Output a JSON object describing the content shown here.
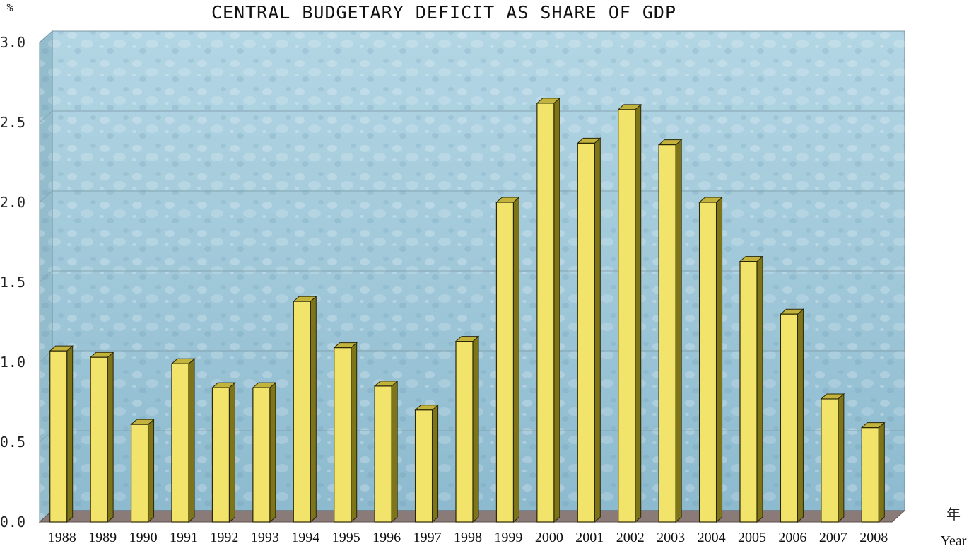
{
  "chart_data": {
    "type": "bar",
    "title": "CENTRAL BUDGETARY DEFICIT AS SHARE OF GDP",
    "ylabel": "%",
    "xlabel_cn": "年",
    "xlabel": "Year",
    "ylim": [
      0,
      3.0
    ],
    "yticks": [
      "0.0",
      "0.5",
      "1.0",
      "1.5",
      "2.0",
      "2.5",
      "3.0"
    ],
    "grid": true,
    "categories": [
      "1988",
      "1989",
      "1990",
      "1991",
      "1992",
      "1993",
      "1994",
      "1995",
      "1996",
      "1997",
      "1998",
      "1999",
      "2000",
      "2001",
      "2002",
      "2003",
      "2004",
      "2005",
      "2006",
      "2007",
      "2008"
    ],
    "values": [
      1.07,
      1.03,
      0.61,
      0.99,
      0.84,
      0.84,
      1.38,
      1.09,
      0.85,
      0.7,
      1.13,
      2.0,
      2.62,
      2.37,
      2.58,
      2.36,
      2.0,
      1.63,
      1.3,
      0.77,
      0.59
    ],
    "colors": {
      "bar_front": "#f2e36a",
      "bar_side": "#7e7418",
      "bar_top": "#c2b33c",
      "plot_bg": "#a6ccdc",
      "floor": "#8a7a78"
    }
  }
}
